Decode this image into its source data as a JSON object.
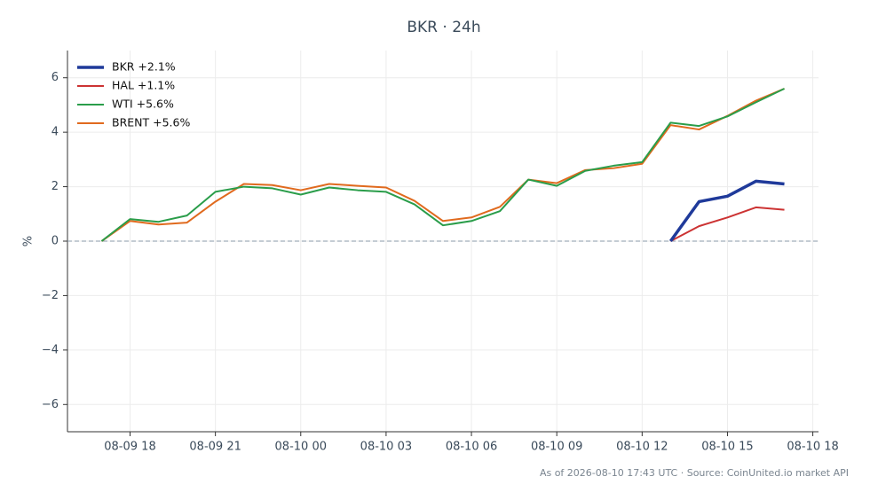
{
  "chart_data": {
    "type": "line",
    "title": "BKR · 24h",
    "y_label": "%",
    "footer": "As of 2026-08-10 17:43 UTC · Source: CoinUnited.io market API",
    "x": [
      "08-09 17",
      "08-09 18",
      "08-09 19",
      "08-09 20",
      "08-09 21",
      "08-09 22",
      "08-09 23",
      "08-10 00",
      "08-10 01",
      "08-10 02",
      "08-10 03",
      "08-10 04",
      "08-10 05",
      "08-10 06",
      "08-10 07",
      "08-10 08",
      "08-10 09",
      "08-10 10",
      "08-10 11",
      "08-10 12",
      "08-10 13",
      "08-10 14",
      "08-10 15",
      "08-10 16",
      "08-10 17"
    ],
    "xticks": [
      "08-09 18",
      "08-09 21",
      "08-10 00",
      "08-10 03",
      "08-10 06",
      "08-10 09",
      "08-10 12",
      "08-10 15",
      "08-10 18"
    ],
    "ylim": [
      -7,
      7
    ],
    "yticks": [
      {
        "value": -6,
        "label": "−6"
      },
      {
        "value": -4,
        "label": "−4"
      },
      {
        "value": -2,
        "label": "−2"
      },
      0,
      2,
      4,
      6
    ],
    "grid": true,
    "hline": 0,
    "legend": "upper-left",
    "series": [
      {
        "name": "BKR +2.1%",
        "color": "#1f3a9a",
        "width": 3.5,
        "values": [
          null,
          null,
          null,
          null,
          null,
          null,
          null,
          null,
          null,
          null,
          null,
          null,
          null,
          null,
          null,
          null,
          null,
          null,
          null,
          null,
          0,
          1.45,
          1.65,
          2.2,
          2.1
        ]
      },
      {
        "name": "HAL +1.1%",
        "color": "#cc3333",
        "width": 2,
        "values": [
          null,
          null,
          null,
          null,
          null,
          null,
          null,
          null,
          null,
          null,
          null,
          null,
          null,
          null,
          null,
          null,
          null,
          null,
          null,
          null,
          0,
          0.55,
          0.87,
          1.24,
          1.15
        ]
      },
      {
        "name": "WTI +5.6%",
        "color": "#2a9d4a",
        "width": 2,
        "values": [
          0,
          0.81,
          0.71,
          0.94,
          1.81,
          2.0,
          1.94,
          1.71,
          1.97,
          1.87,
          1.81,
          1.35,
          0.58,
          0.74,
          1.1,
          2.26,
          2.03,
          2.58,
          2.77,
          2.9,
          4.35,
          4.23,
          4.58,
          5.1,
          5.6
        ]
      },
      {
        "name": "BRENT +5.6%",
        "color": "#e06a1e",
        "width": 2,
        "values": [
          0,
          0.74,
          0.61,
          0.68,
          1.45,
          2.1,
          2.06,
          1.87,
          2.1,
          2.03,
          1.97,
          1.48,
          0.74,
          0.87,
          1.26,
          2.26,
          2.13,
          2.61,
          2.68,
          2.84,
          4.26,
          4.1,
          4.6,
          5.16,
          5.6
        ]
      }
    ]
  }
}
